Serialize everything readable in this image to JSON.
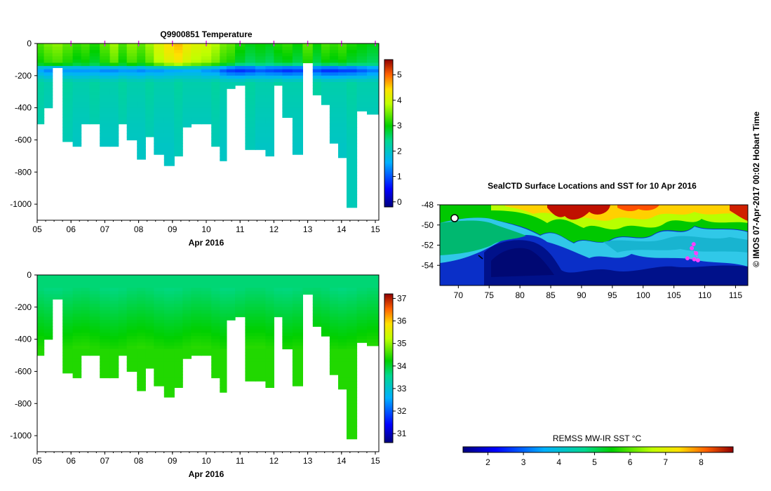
{
  "chart_data": [
    {
      "type": "heatmap",
      "title": "Q9900851  Temperature",
      "xlabel": "Apr 2016",
      "xticks": [
        "05",
        "06",
        "07",
        "08",
        "09",
        "10",
        "11",
        "12",
        "13",
        "14",
        "15"
      ],
      "xlim": [
        5,
        15
      ],
      "yticks": [
        "0",
        "-200",
        "-400",
        "-600",
        "-800",
        "-1000"
      ],
      "ylim": [
        -1100,
        0
      ],
      "colorbar": {
        "ticks": [
          "0",
          "1",
          "2",
          "3",
          "4",
          "5"
        ],
        "range": [
          -0.2,
          5.6
        ]
      },
      "profile_days": [
        5.1,
        5.3,
        5.6,
        5.9,
        6.2,
        6.4,
        6.7,
        7.0,
        7.3,
        7.5,
        7.8,
        8.1,
        8.3,
        8.6,
        8.9,
        9.2,
        9.4,
        9.7,
        10.0,
        10.3,
        10.5,
        10.7,
        11.0,
        11.3,
        11.6,
        11.9,
        12.1,
        12.4,
        12.7,
        13.0,
        13.3,
        13.5,
        13.8,
        14.0,
        14.3,
        14.6,
        14.9
      ],
      "profile_max_depth": [
        -500,
        -400,
        -150,
        -610,
        -640,
        -500,
        -500,
        -640,
        -640,
        -500,
        -600,
        -720,
        -580,
        -690,
        -760,
        -700,
        -520,
        -500,
        -500,
        -640,
        -730,
        -280,
        -260,
        -660,
        -660,
        -700,
        -260,
        -460,
        -690,
        -120,
        -320,
        -380,
        -620,
        -710,
        -1020,
        -420,
        -440
      ],
      "surface_temperature": [
        3.3,
        3.5,
        3.6,
        3.4,
        3.2,
        3.3,
        3.1,
        3.4,
        3.7,
        3.3,
        3.6,
        3.4,
        3.7,
        4.1,
        4.4,
        4.6,
        4.3,
        4.1,
        4.0,
        3.8,
        3.5,
        3.4,
        3.1,
        2.9,
        3.0,
        2.9,
        3.1,
        3.2,
        3.0,
        3.4,
        3.0,
        3.3,
        3.2,
        3.3,
        3.1,
        3.0,
        2.9
      ],
      "deep_temperature": [
        2.1,
        2.0,
        2.0,
        2.1,
        2.0,
        2.0,
        2.1,
        2.0,
        2.0,
        2.1,
        2.0,
        2.0,
        2.1,
        2.0,
        2.0,
        2.1,
        2.0,
        2.0,
        2.0,
        2.1,
        2.0,
        2.0,
        2.0,
        2.1,
        2.0,
        2.0,
        2.1,
        2.0,
        2.0,
        2.0,
        2.1,
        2.0,
        2.0,
        2.0,
        2.1,
        2.0,
        2.0
      ],
      "subsurface_minimum": [
        1.4,
        1.2,
        1.1,
        1.3,
        1.3,
        1.3,
        1.3,
        1.2,
        1.2,
        1.3,
        1.3,
        1.2,
        1.3,
        1.3,
        1.4,
        1.4,
        1.5,
        1.5,
        1.3,
        1.2,
        0.9,
        0.7,
        0.6,
        0.7,
        0.9,
        0.8,
        0.7,
        0.6,
        0.7,
        0.5,
        0.8,
        0.6,
        0.6,
        0.7,
        0.7,
        0.9,
        1.1
      ],
      "surface_markers": [
        6.0,
        7.0,
        8.0,
        9.0,
        10.0,
        11.0,
        12.0,
        13.0,
        14.0,
        15.0
      ]
    },
    {
      "type": "heatmap",
      "title": "",
      "xlabel": "Apr 2016",
      "xticks": [
        "05",
        "06",
        "07",
        "08",
        "09",
        "10",
        "11",
        "12",
        "13",
        "14",
        "15"
      ],
      "xlim": [
        5,
        15
      ],
      "yticks": [
        "0",
        "-200",
        "-400",
        "-600",
        "-800",
        "-1000"
      ],
      "ylim": [
        -1100,
        0
      ],
      "colorbar": {
        "ticks": [
          "31",
          "32",
          "33",
          "34",
          "35",
          "36",
          "37"
        ],
        "range": [
          30.6,
          37.2
        ]
      },
      "surface_salinity": 33.7,
      "deep_salinity": 34.4
    },
    {
      "type": "heatmap",
      "title": "SealCTD Surface Locations and SST for 10 Apr 2016",
      "xticks": [
        "70",
        "75",
        "80",
        "85",
        "90",
        "95",
        "100",
        "105",
        "110",
        "115"
      ],
      "xlim": [
        67,
        117
      ],
      "yticks": [
        "-48",
        "-50",
        "-52",
        "-54"
      ],
      "ylim": [
        -56,
        -48
      ],
      "colorbar_label": "REMSS MW-IR SST °C",
      "colorbar": {
        "ticks": [
          "2",
          "3",
          "4",
          "5",
          "6",
          "7",
          "8"
        ],
        "range": [
          1.3,
          8.9
        ]
      },
      "track_points": [
        [
          107.2,
          -53.3
        ],
        [
          108.3,
          -53.4
        ],
        [
          108.9,
          -53.5
        ],
        [
          108.6,
          -52.8
        ],
        [
          107.9,
          -52.3
        ],
        [
          108.2,
          -51.9
        ]
      ]
    }
  ],
  "credit": "© IMOS 07-Apr-2017 00:02 Hobart Time"
}
